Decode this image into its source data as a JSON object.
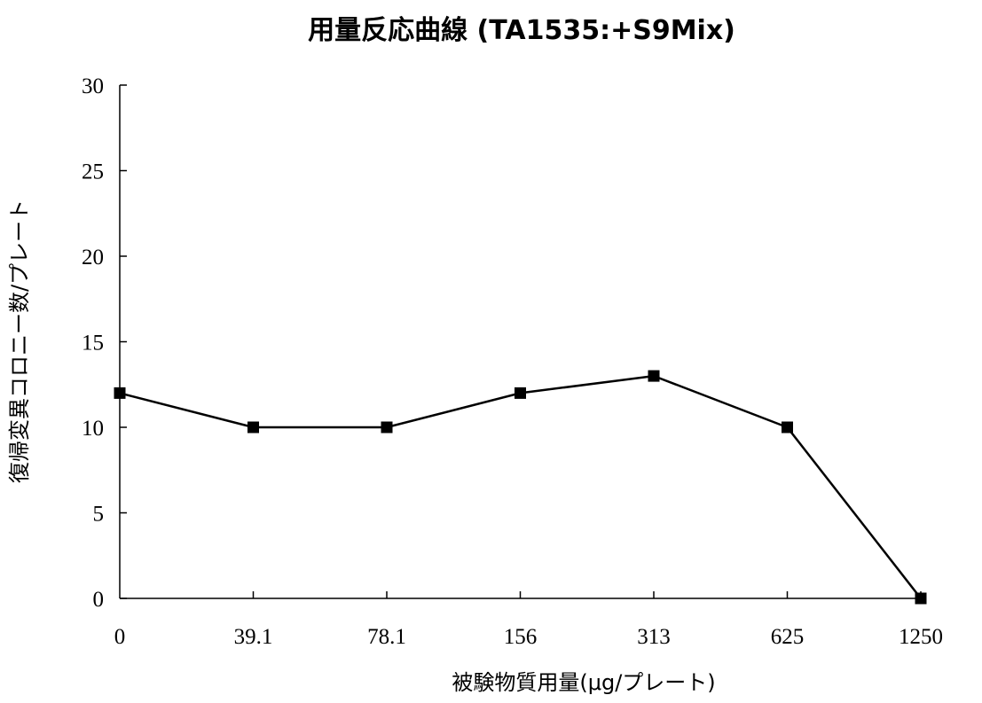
{
  "chart_data": {
    "type": "line",
    "title": "用量反応曲線 (TA1535:+S9Mix)",
    "xlabel": "被験物質用量(μg/プレート)",
    "ylabel": "復帰変異コロニー数/プレート",
    "categories": [
      "0",
      "39.1",
      "78.1",
      "156",
      "313",
      "625",
      "1250"
    ],
    "series": [
      {
        "values": [
          12,
          10,
          10,
          12,
          13,
          10,
          0
        ]
      }
    ],
    "ylim": [
      0,
      30
    ],
    "yticks": [
      0,
      5,
      10,
      15,
      20,
      25,
      30
    ],
    "grid": false,
    "legend": "none",
    "colors": {
      "line": "#000000",
      "marker": "#000000"
    }
  }
}
